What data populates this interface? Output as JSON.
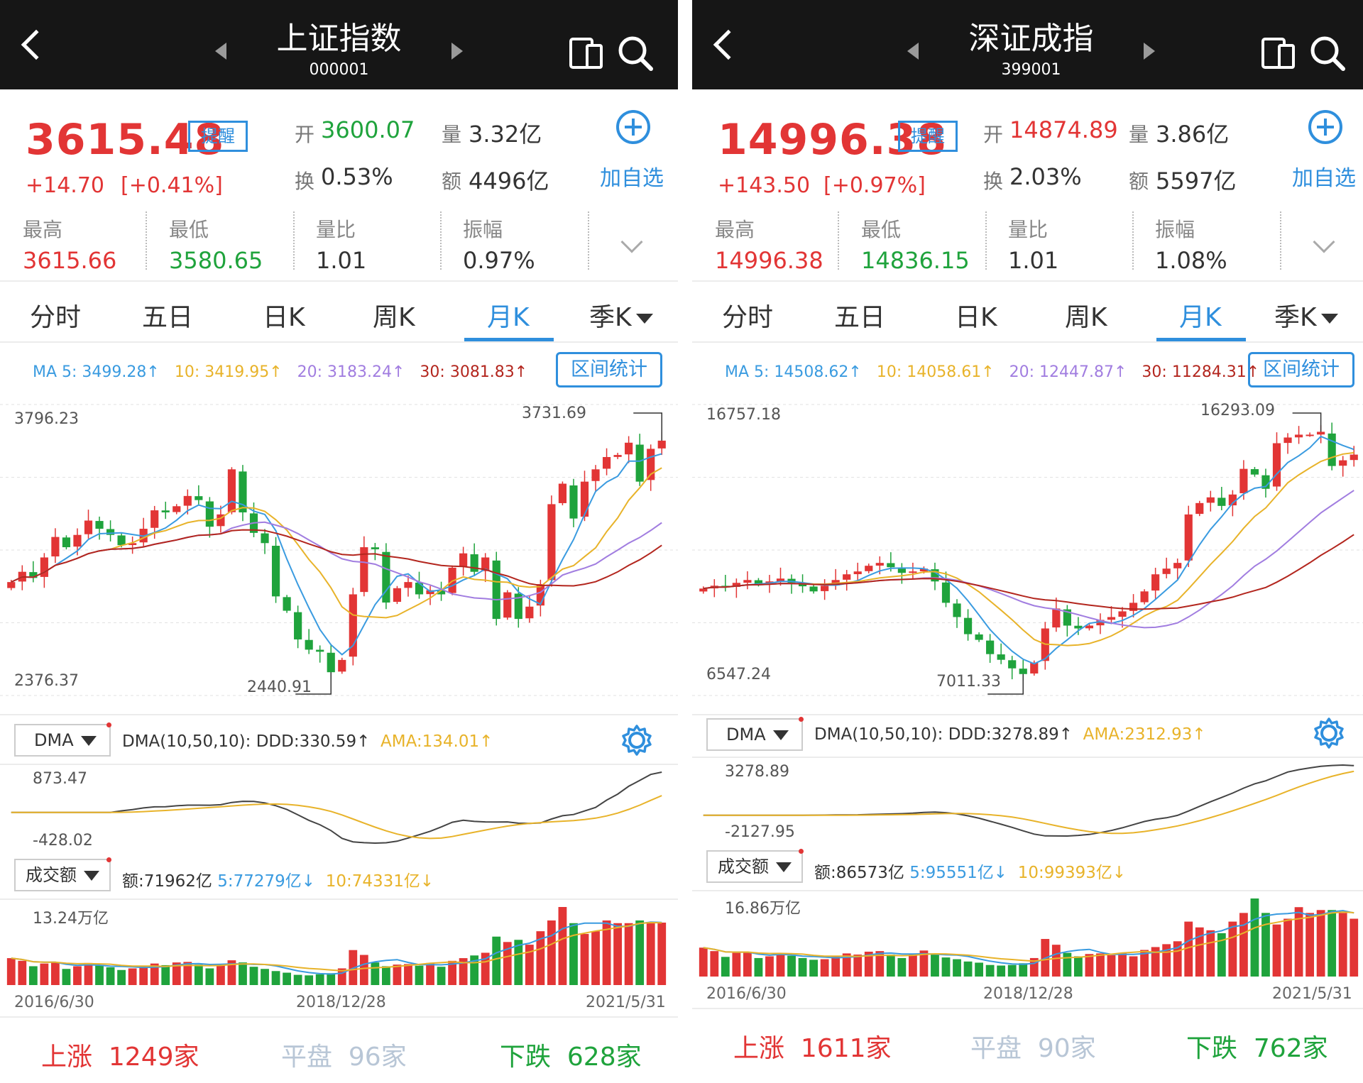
{
  "colors": {
    "up": "#e23535",
    "down": "#1fa33c",
    "accent": "#2f8fdd",
    "ma5": "#3a9be0",
    "ma10": "#e8b32a",
    "ma20": "#a17de0",
    "ma30": "#b3261e",
    "flat": "#b8c6d6"
  },
  "panels": [
    {
      "header": {
        "title": "上证指数",
        "code": "000001"
      },
      "quote": {
        "price": "3615.48",
        "remind": "提醒",
        "change": "+14.70",
        "change_pct": "[+0.41%]",
        "open_label": "开",
        "open": "3600.07",
        "vol_label": "量",
        "vol": "3.32亿",
        "turnover_label": "换",
        "turnover": "0.53%",
        "amount_label": "额",
        "amount": "4496亿",
        "add_label": "加自选"
      },
      "stats": [
        {
          "label": "最高",
          "value": "3615.66",
          "tone": "up"
        },
        {
          "label": "最低",
          "value": "3580.65",
          "tone": "down"
        },
        {
          "label": "量比",
          "value": "1.01",
          "tone": "neutral"
        },
        {
          "label": "振幅",
          "value": "0.97%",
          "tone": "neutral"
        }
      ],
      "tabs": [
        "分时",
        "五日",
        "日K",
        "周K",
        "月K",
        "季K"
      ],
      "active_tab": 4,
      "ma": {
        "ma5": "MA 5: 3499.28↑",
        "ma10": "10: 3419.95↑",
        "ma20": "20: 3183.24↑",
        "ma30": "30: 3081.83↑"
      },
      "range_stat": "区间统计",
      "price_axis": {
        "max_label": "3796.23",
        "min_label": "2376.37",
        "high_mark": "3731.69",
        "low_mark": "2440.91"
      },
      "dma": {
        "name": "DMA",
        "params": "DMA(10,50,10):",
        "ddd": "DDD:330.59↑",
        "ama": "AMA:134.01↑",
        "top_label": "873.47",
        "bottom_label": "-428.02"
      },
      "volume": {
        "name": "成交额",
        "amount": "额:71962亿",
        "ma5": "5:77279亿↓",
        "ma10": "10:74331亿↓",
        "top_label": "13.24万亿"
      },
      "dates": [
        "2016/6/30",
        "2018/12/28",
        "2021/5/31"
      ],
      "breadth": {
        "up_label": "上涨",
        "up_count": "1249家",
        "flat_label": "平盘",
        "flat_count": "96家",
        "down_label": "下跌",
        "down_count": "628家"
      },
      "chart_data": {
        "type": "candlestick",
        "ylim": [
          2376.37,
          3796.23
        ],
        "x_range": [
          "2016/6/30",
          "2021/5/31"
        ],
        "close": [
          2930,
          2980,
          2950,
          3050,
          3150,
          3100,
          3160,
          3230,
          3190,
          3160,
          3110,
          3120,
          3190,
          3280,
          3270,
          3300,
          3350,
          3330,
          3200,
          3260,
          3480,
          3270,
          3170,
          3120,
          2860,
          2790,
          2650,
          2600,
          2590,
          2490,
          2550,
          2870,
          3100,
          3090,
          2830,
          2900,
          2930,
          2870,
          2890,
          2870,
          3000,
          3070,
          2980,
          3050,
          2750,
          2880,
          2750,
          2810,
          2920,
          3310,
          3410,
          3240,
          3420,
          3480,
          3540,
          3550,
          3610,
          3420,
          3580,
          3620
        ],
        "volume": [
          100,
          90,
          70,
          80,
          85,
          60,
          70,
          82,
          72,
          66,
          56,
          62,
          70,
          80,
          74,
          84,
          86,
          76,
          62,
          78,
          92,
          84,
          68,
          60,
          52,
          46,
          38,
          36,
          40,
          44,
          62,
          130,
          112,
          84,
          70,
          76,
          78,
          72,
          82,
          68,
          90,
          100,
          110,
          120,
          180,
          160,
          168,
          150,
          200,
          240,
          290,
          230,
          190,
          200,
          240,
          230,
          230,
          240,
          230,
          232
        ],
        "ma5": [
          3499.28
        ],
        "ma10": [
          3419.95
        ],
        "ma20": [
          3183.24
        ],
        "ma30": [
          3081.83
        ],
        "dma": {
          "ddd_last": 330.59,
          "ama_last": 134.01,
          "ylim": [
            -428.02,
            873.47
          ]
        },
        "volume_last": 71962,
        "volume_ma5": 77279,
        "volume_ma10": 74331,
        "volume_max": "13.24万亿"
      }
    },
    {
      "header": {
        "title": "深证成指",
        "code": "399001"
      },
      "quote": {
        "price": "14996.38",
        "remind": "提醒",
        "change": "+143.50",
        "change_pct": "[+0.97%]",
        "open_label": "开",
        "open": "14874.89",
        "vol_label": "量",
        "vol": "3.86亿",
        "turnover_label": "换",
        "turnover": "2.03%",
        "amount_label": "额",
        "amount": "5597亿",
        "add_label": "加自选"
      },
      "stats": [
        {
          "label": "最高",
          "value": "14996.38",
          "tone": "up"
        },
        {
          "label": "最低",
          "value": "14836.15",
          "tone": "down"
        },
        {
          "label": "量比",
          "value": "1.01",
          "tone": "neutral"
        },
        {
          "label": "振幅",
          "value": "1.08%",
          "tone": "neutral"
        }
      ],
      "tabs": [
        "分时",
        "五日",
        "日K",
        "周K",
        "月K",
        "季K"
      ],
      "active_tab": 4,
      "ma": {
        "ma5": "MA 5: 14508.62↑",
        "ma10": "10: 14058.61↑",
        "ma20": "20: 12447.87↑",
        "ma30": "30: 11284.31↑"
      },
      "range_stat": "区间统计",
      "price_axis": {
        "max_label": "16757.18",
        "min_label": "6547.24",
        "high_mark": "16293.09",
        "low_mark": "7011.33"
      },
      "dma": {
        "name": "DMA",
        "params": "DMA(10,50,10):",
        "ddd": "DDD:3278.89↑",
        "ama": "AMA:2312.93↑",
        "top_label": "3278.89",
        "bottom_label": "-2127.95"
      },
      "volume": {
        "name": "成交额",
        "amount": "额:86573亿",
        "ma5": "5:95551亿↓",
        "ma10": "10:99393亿↓",
        "top_label": "16.86万亿"
      },
      "dates": [
        "2016/6/30",
        "2018/12/28",
        "2021/5/31"
      ],
      "breadth": {
        "up_label": "上涨",
        "up_count": "1611家",
        "flat_label": "平盘",
        "flat_count": "90家",
        "down_label": "下跌",
        "down_count": "762家"
      },
      "chart_data": {
        "type": "candlestick",
        "ylim": [
          6547.24,
          16757.18
        ],
        "x_range": [
          "2016/6/30",
          "2021/5/31"
        ],
        "close": [
          10300,
          10400,
          10350,
          10500,
          10600,
          10450,
          10550,
          10650,
          10500,
          10380,
          10200,
          10400,
          10600,
          10800,
          10900,
          11100,
          11200,
          11050,
          10850,
          10900,
          11000,
          10550,
          9800,
          9300,
          8700,
          8500,
          8000,
          7800,
          7500,
          7300,
          7700,
          8900,
          9600,
          9000,
          8900,
          9000,
          9200,
          9300,
          9500,
          9800,
          10200,
          10800,
          11000,
          11200,
          12900,
          13300,
          13500,
          13200,
          13600,
          14500,
          14300,
          13800,
          15400,
          15600,
          15700,
          15700,
          15800,
          14600,
          14800,
          15000
        ],
        "volume": [
          100,
          88,
          68,
          82,
          86,
          64,
          70,
          82,
          72,
          64,
          58,
          60,
          70,
          80,
          76,
          86,
          88,
          76,
          64,
          76,
          90,
          80,
          66,
          60,
          52,
          48,
          40,
          38,
          40,
          46,
          64,
          130,
          110,
          82,
          70,
          78,
          80,
          74,
          82,
          70,
          92,
          102,
          112,
          122,
          190,
          170,
          160,
          150,
          190,
          220,
          270,
          220,
          180,
          200,
          240,
          220,
          230,
          230,
          220,
          200
        ],
        "ma5": [
          14508.62
        ],
        "ma10": [
          14058.61
        ],
        "ma20": [
          12447.87
        ],
        "ma30": [
          11284.31
        ],
        "dma": {
          "ddd_last": 3278.89,
          "ama_last": 2312.93,
          "ylim": [
            -2127.95,
            3278.89
          ]
        },
        "volume_last": 86573,
        "volume_ma5": 95551,
        "volume_ma10": 99393,
        "volume_max": "16.86万亿"
      }
    }
  ]
}
